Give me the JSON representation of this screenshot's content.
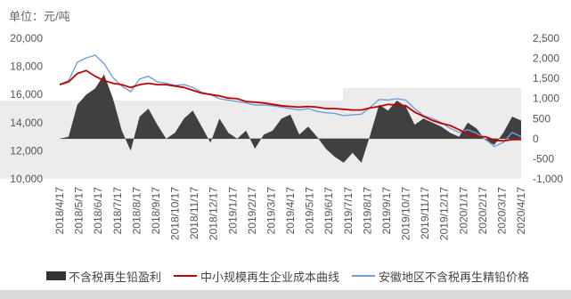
{
  "unit_label": "单位：元/吨",
  "chart_data": {
    "type": "line",
    "left_axis": {
      "ylim": [
        10000,
        20000
      ],
      "ticks": [
        "10,000",
        "12,000",
        "14,000",
        "16,000",
        "18,000",
        "20,000"
      ]
    },
    "right_axis": {
      "ylim": [
        -1000,
        2500
      ],
      "ticks": [
        "-1,000",
        "-500",
        "0",
        "500",
        "1,000",
        "1,500",
        "2,000",
        "2,500"
      ]
    },
    "x_labels": [
      "2018/4/17",
      "2018/5/17",
      "2018/6/17",
      "2018/7/17",
      "2018/8/17",
      "2018/9/17",
      "2018/10/17",
      "2018/11/17",
      "2018/12/17",
      "2019/1/17",
      "2019/2/17",
      "2019/3/17",
      "2019/4/17",
      "2019/5/17",
      "2019/6/17",
      "2019/7/17",
      "2019/8/17",
      "2019/9/17",
      "2019/10/17",
      "2019/11/17",
      "2019/12/17",
      "2020/1/17",
      "2020/2/17",
      "2020/3/17",
      "2020/4/17"
    ],
    "legend_position": "bottom",
    "series": [
      {
        "name": "不含税再生铅盈利",
        "kind": "area",
        "axis": "right",
        "color": "#404040",
        "values": [
          0,
          50,
          850,
          1100,
          1250,
          1600,
          1000,
          200,
          -300,
          550,
          750,
          350,
          0,
          150,
          500,
          700,
          300,
          -100,
          500,
          150,
          0,
          200,
          -250,
          100,
          200,
          500,
          600,
          100,
          300,
          50,
          -250,
          -450,
          -600,
          -350,
          -600,
          100,
          850,
          700,
          950,
          800,
          350,
          500,
          400,
          300,
          150,
          50,
          400,
          250,
          -50,
          -150,
          150,
          550,
          450
        ]
      },
      {
        "name": "中小规模再生企业成本曲线",
        "kind": "line",
        "axis": "left",
        "color": "#c00000",
        "values": [
          16700,
          16900,
          17500,
          17700,
          17300,
          17000,
          16800,
          16700,
          16500,
          16700,
          16800,
          16700,
          16700,
          16600,
          16500,
          16300,
          16100,
          16000,
          15900,
          15750,
          15700,
          15500,
          15450,
          15400,
          15300,
          15200,
          15150,
          15100,
          15150,
          15100,
          15000,
          15000,
          14950,
          14900,
          14900,
          15050,
          15150,
          15300,
          15250,
          15200,
          14750,
          14450,
          14150,
          13950,
          13800,
          13500,
          13200,
          13000,
          13000,
          12750,
          12700,
          12800,
          12800
        ]
      },
      {
        "name": "安徽地区不含税再生精铅价格",
        "kind": "line",
        "axis": "left",
        "color": "#6f9fd8",
        "values": [
          16700,
          17000,
          18300,
          18600,
          18800,
          18200,
          17200,
          16600,
          16200,
          17100,
          17300,
          16900,
          16800,
          16650,
          16700,
          16500,
          16150,
          16000,
          15700,
          15600,
          15500,
          15400,
          15250,
          15250,
          15200,
          15100,
          15000,
          14900,
          15000,
          14800,
          14700,
          14650,
          14500,
          14550,
          14600,
          15100,
          15650,
          15600,
          15700,
          15600,
          15000,
          14500,
          14300,
          14000,
          13600,
          13300,
          13500,
          13250,
          12800,
          12300,
          12600,
          13300,
          13000
        ]
      }
    ]
  }
}
